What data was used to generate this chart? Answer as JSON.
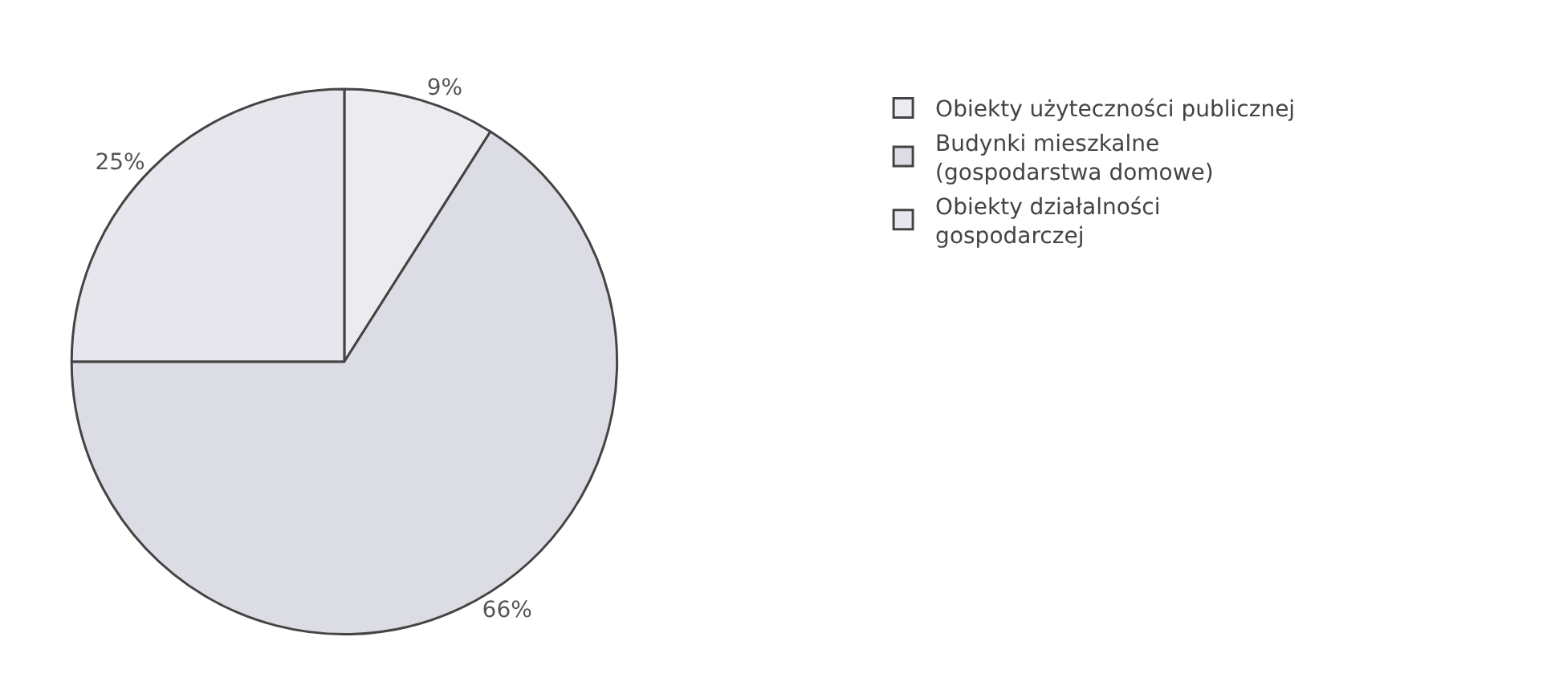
{
  "chart_data": {
    "type": "pie",
    "categories": [
      "Obiekty użyteczności publicznej",
      "Budynki mieszkalne\n(gospodarstwa domowe)",
      "Obiekty działalności\ngospodarczej"
    ],
    "values": [
      9,
      66,
      25
    ],
    "value_labels": [
      "9%",
      "66%",
      "25%"
    ],
    "colors": [
      "#ececf0",
      "#dcdce4",
      "#e6e6ec"
    ],
    "legend": "right"
  }
}
